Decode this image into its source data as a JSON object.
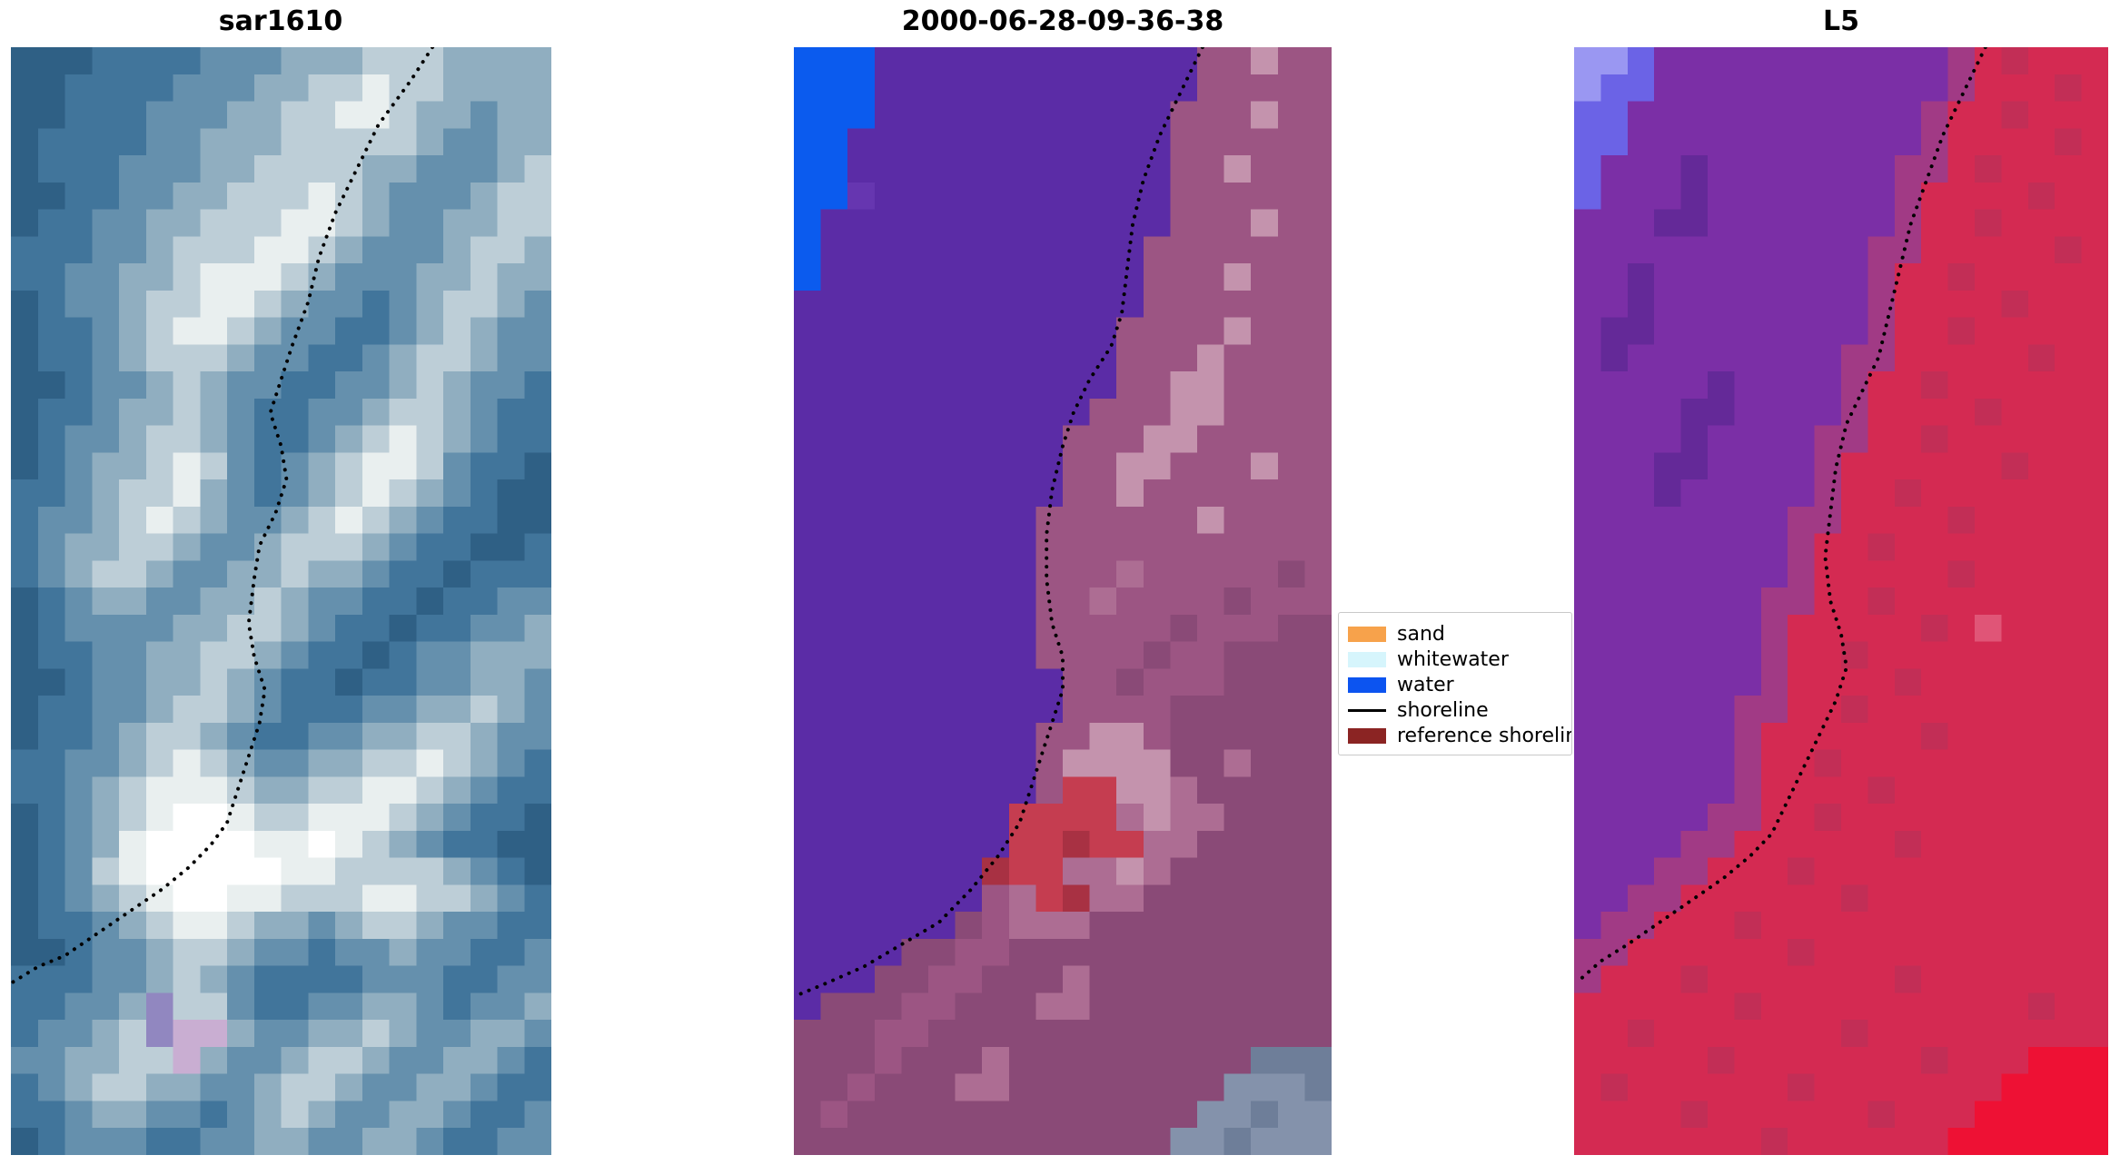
{
  "figure": {
    "background": "#ffffff",
    "panels": [
      {
        "title": "sar1610",
        "palette": {
          "a": "#2f6085",
          "b": "#41759b",
          "c": "#6590ad",
          "d": "#90aec0",
          "e": "#bdced7",
          "f": "#e9efef",
          "g": "#ffffff",
          "h": "#c9aed2",
          "i": "#9187c0"
        },
        "grid": [
          "aaabbbbcccdddeeedddd",
          "aabbbbcccddeefeedddd",
          "aabbbcccddeeffeddcdd",
          "abbbbccdddeeeeedccdd",
          "abbbcccddeeeeddcccde",
          "aabbccddeeefedcccdee",
          "abbccddeeeffedccddee",
          "bbbccdeeeffedcccdeed",
          "bbccddefffedcccddedd",
          "abccdeeffedccbcdeedc",
          "abbcdeffedccbbcdedcc",
          "abbcdeeedccbbcdeedcc",
          "aabccdedccbbccdedccb",
          "abbcddedcbbccdeedcbb",
          "abccdeedcbbcdefedcbb",
          "abcddefecbcdeffecbba",
          "bbcdeefdcbcdefedcbaa",
          "bccdefedccdefedcbbaa",
          "bcddeedccdeeedcbbaab",
          "bcdeedccddeddcbbabbb",
          "abcddccddedccbbabbcc",
          "abccccddeedcbbabbccd",
          "abbccddeedcbbabccddd",
          "aabccddedcbbabbccddc",
          "abbccdeedcbbbccddedc",
          "abbcdeedcbbccddeedcc",
          "bbccdefedccddeefedcb",
          "bbcdefffeddeeffedcbb",
          "abcdefggfeefffedcbba",
          "abcdfggggffgfedcbbaa",
          "abcefgggggffeeeedcba",
          "abcdefggffeeeffeedcb",
          "abbcdeffeddcdeedccbb",
          "aabccdeedccbccdccbbc",
          "bbbccdedcbbbbcccbbcc",
          "bbccdieecbbccddcbccd",
          "bccdeihhdccddedccddc",
          "ccddeehdccdeedccddcb",
          "bcdeeddccdeedccddcbb",
          "bbcddccbcdedccddcbbc",
          "abcccbbccddccddcbbcc"
        ],
        "shoreline": [
          [
            0.78,
            0.0
          ],
          [
            0.74,
            0.03
          ],
          [
            0.68,
            0.07
          ],
          [
            0.64,
            0.11
          ],
          [
            0.6,
            0.15
          ],
          [
            0.57,
            0.19
          ],
          [
            0.55,
            0.23
          ],
          [
            0.52,
            0.27
          ],
          [
            0.5,
            0.3
          ],
          [
            0.48,
            0.33
          ],
          [
            0.5,
            0.36
          ],
          [
            0.51,
            0.39
          ],
          [
            0.49,
            0.42
          ],
          [
            0.46,
            0.45
          ],
          [
            0.45,
            0.48
          ],
          [
            0.44,
            0.52
          ],
          [
            0.45,
            0.55
          ],
          [
            0.47,
            0.58
          ],
          [
            0.46,
            0.61
          ],
          [
            0.44,
            0.64
          ],
          [
            0.42,
            0.67
          ],
          [
            0.4,
            0.7
          ],
          [
            0.37,
            0.72
          ],
          [
            0.33,
            0.74
          ],
          [
            0.28,
            0.76
          ],
          [
            0.22,
            0.78
          ],
          [
            0.16,
            0.8
          ],
          [
            0.1,
            0.82
          ],
          [
            0.05,
            0.83
          ],
          [
            0.0,
            0.845
          ]
        ]
      },
      {
        "title": "2000-06-28-09-36-38",
        "palette": {
          "B": "#0b5bee",
          "P": "#5b2ca6",
          "p": "#6636b0",
          "M": "#9c5583",
          "m": "#8a4a77",
          "L": "#c493ad",
          "l": "#ad6d93",
          "R": "#c53d50",
          "r": "#a83143",
          "S": "#8492ab",
          "T": "#6e7e99"
        },
        "grid": [
          "BBBPPPPPPPPPPPPMMLMM",
          "BBBPPPPPPPPPPPPMMMMM",
          "BBBPPPPPPPPPPPMMMLMM",
          "BBPPPPPPPPPPPPMMMMMM",
          "BBPPPPPPPPPPPPMMLMMM",
          "BBpPPPPPPPPPPPMMMMMM",
          "BPPPPPPPPPPPPPMMMLMM",
          "BPPPPPPPPPPPPMMMMMMM",
          "BPPPPPPPPPPPPMMMLMMM",
          "PPPPPPPPPPPPPMMMMMMM",
          "PPPPPPPPPPPPMMMMLMMM",
          "PPPPPPPPPPPPMMMLMMMM",
          "PPPPPPPPPPPPMMLLMMMM",
          "PPPPPPPPPPPMMMLLMMMM",
          "PPPPPPPPPPMMMLLMMMMM",
          "PPPPPPPPPPMMLLMMMLMM",
          "PPPPPPPPPPMMLMMMMMMM",
          "PPPPPPPPPMMMMMMLMMMM",
          "PPPPPPPPPMMMMMMMMMMM",
          "PPPPPPPPPMMMlMMMMMmM",
          "PPPPPPPPPMMlMMMMmMMM",
          "PPPPPPPPPMMMMMmMMMmm",
          "PPPPPPPPPMMMMmMMmmmm",
          "PPPPPPPPPPMMmMMMmmmm",
          "PPPPPPPPPPMMMMmmmmmm",
          "PPPPPPPPPMMLLMmmmmmm",
          "PPPPPPPPPMLLLLmmlmmm",
          "PPPPPPPPPMRRLLlmmmmm",
          "PPPPPPPPRRRRlLllmmmm",
          "PPPPPPPPRRrRRllmmmmm",
          "PPPPPPPrRRllLlmmmmmm",
          "PPPPPPPMlRrllmmmmmmm",
          "PPPPPPmMlllmmmmmmmmm",
          "PPPPmmMMmmmmmmmmmmmm",
          "PPPmmMMmmmlmmmmmmmmm",
          "PmmmMMmmmllmmmmmmmmm",
          "mmmMMmmmmmmmmmmmmmmm",
          "mmmMmmmlmmmmmmmmmTTT",
          "mmMmmmllmmmmmmmmSSST",
          "mMmmmmmmmmmmmmmSSTSS",
          "mmmmmmmmmmmmmmSSTSSS"
        ],
        "shoreline": [
          [
            0.76,
            0.0
          ],
          [
            0.72,
            0.04
          ],
          [
            0.68,
            0.08
          ],
          [
            0.65,
            0.12
          ],
          [
            0.63,
            0.16
          ],
          [
            0.62,
            0.2
          ],
          [
            0.61,
            0.24
          ],
          [
            0.59,
            0.27
          ],
          [
            0.55,
            0.3
          ],
          [
            0.52,
            0.33
          ],
          [
            0.5,
            0.36
          ],
          [
            0.48,
            0.4
          ],
          [
            0.47,
            0.44
          ],
          [
            0.47,
            0.48
          ],
          [
            0.48,
            0.52
          ],
          [
            0.5,
            0.55
          ],
          [
            0.5,
            0.58
          ],
          [
            0.48,
            0.61
          ],
          [
            0.46,
            0.64
          ],
          [
            0.44,
            0.67
          ],
          [
            0.42,
            0.7
          ],
          [
            0.38,
            0.73
          ],
          [
            0.33,
            0.76
          ],
          [
            0.27,
            0.79
          ],
          [
            0.2,
            0.81
          ],
          [
            0.13,
            0.83
          ],
          [
            0.06,
            0.845
          ],
          [
            0.01,
            0.855
          ]
        ]
      },
      {
        "title": "L5",
        "palette": {
          "U": "#9a97f2",
          "u": "#6b63e6",
          "V": "#7b2fa6",
          "v": "#642998",
          "W": "#a13a85",
          "C": "#d42a52",
          "c": "#c22e56",
          "D": "#e05577",
          "E": "#ee1134"
        },
        "grid": [
          "UUuVVVVVVVVVVVWCcCCC",
          "UuuVVVVVVVVVVVWCCCcC",
          "uuVVVVVVVVVVVWCCcCCC",
          "uuVVVVVVVVVVVWCCCCcC",
          "uVVVvVVVVVVVWWCcCCCC",
          "uVVVvVVVVVVVWCCCCcCC",
          "VVVvvVVVVVVVWCCcCCCC",
          "VVVVVVVVVVVWWCCCCCcC",
          "VVvVVVVVVVVWCCcCCCCC",
          "VVvVVVVVVVVWCCCCcCCC",
          "VvvVVVVVVVVWCCcCCCCC",
          "VvVVVVVVVVWWCCCCCcCC",
          "VVVVVvVVVVWCCcCCCCCC",
          "VVVVvvVVVVWCCCCcCCCC",
          "VVVVvVVVVWWCCcCCCCCC",
          "VVVvvVVVVWCCCCCCcCCC",
          "VVVvVVVVVWCCcCCCCCCC",
          "VVVVVVVVWWCCCCcCCCCC",
          "VVVVVVVVWCCcCCCCCCCC",
          "VVVVVVVVWCCCCCcCCCCC",
          "VVVVVVVWWCCcCCCCCCCC",
          "VVVVVVVWCCCCCcCDCCCC",
          "VVVVVVVWCCcCCCCCCCCC",
          "VVVVVVVWCCCCcCCCCCCC",
          "VVVVVVWWCCcCCCCCCCCC",
          "VVVVVVWCCCCCCcCCCCCC",
          "VVVVVVWCCcCCCCCCCCCC",
          "VVVVVVWCCCCcCCCCCCCC",
          "VVVVVWWCCcCCCCCCCCCC",
          "VVVVWWCCCCCCcCCCCCCC",
          "VVVWWCCCcCCCCCCCCCCC",
          "VVWWCCCCCCcCCCCCCCCC",
          "VWWCCCcCCCCCCCCCCCCC",
          "WWCCCCCCcCCCCCCCCCCC",
          "WCCCcCCCCCCCcCCCCCCC",
          "CCCCCCcCCCCCCCCCCcCC",
          "CCcCCCCCCCcCCCCCCCCC",
          "CCCCCcCCCCCCCcCCCEEE",
          "CcCCCCCCcCCCCCCCEEEE",
          "CCCCcCCCCCCcCCCEEEEE",
          "CCCCCCCcCCCCCCEEEEEE"
        ],
        "shoreline": [
          [
            0.77,
            0.0
          ],
          [
            0.73,
            0.04
          ],
          [
            0.69,
            0.08
          ],
          [
            0.66,
            0.12
          ],
          [
            0.63,
            0.16
          ],
          [
            0.61,
            0.2
          ],
          [
            0.59,
            0.24
          ],
          [
            0.57,
            0.28
          ],
          [
            0.54,
            0.31
          ],
          [
            0.51,
            0.34
          ],
          [
            0.49,
            0.38
          ],
          [
            0.48,
            0.42
          ],
          [
            0.47,
            0.46
          ],
          [
            0.48,
            0.5
          ],
          [
            0.5,
            0.53
          ],
          [
            0.51,
            0.56
          ],
          [
            0.49,
            0.59
          ],
          [
            0.46,
            0.62
          ],
          [
            0.43,
            0.65
          ],
          [
            0.4,
            0.68
          ],
          [
            0.37,
            0.71
          ],
          [
            0.33,
            0.73
          ],
          [
            0.28,
            0.75
          ],
          [
            0.22,
            0.77
          ],
          [
            0.16,
            0.79
          ],
          [
            0.1,
            0.81
          ],
          [
            0.05,
            0.825
          ],
          [
            0.015,
            0.84
          ]
        ]
      }
    ],
    "legend": {
      "items": [
        {
          "label": "sand",
          "type": "patch",
          "color": "#f7a24b"
        },
        {
          "label": "whitewater",
          "type": "patch",
          "color": "#d6f5fc"
        },
        {
          "label": "water",
          "type": "patch",
          "color": "#0c54f0"
        },
        {
          "label": "shoreline",
          "type": "line",
          "color": "#000000"
        },
        {
          "label": "reference shoreline",
          "type": "patch",
          "color": "#8b2423"
        }
      ]
    }
  },
  "chart_data": {
    "type": "heatmap",
    "panels": [
      {
        "title": "sar1610",
        "description": "pixelated satellite image of a coast with dotted black detected shoreline"
      },
      {
        "title": "2000-06-28-09-36-38",
        "description": "classified scene: violet water region, mauve land, blue water patch top-left, red reference-shoreline blob, gray patch bottom-right, dotted detected shoreline"
      },
      {
        "title": "L5",
        "description": "false-color Landsat 5 scene: purple water region, crimson land, blue patch top-left, bright red bottom-right corner, dotted detected shoreline"
      }
    ],
    "legend": {
      "position": "center-right",
      "entries": [
        "sand",
        "whitewater",
        "water",
        "shoreline",
        "reference shoreline"
      ]
    },
    "grid": false,
    "axes": "none (image panels, no ticks)"
  }
}
